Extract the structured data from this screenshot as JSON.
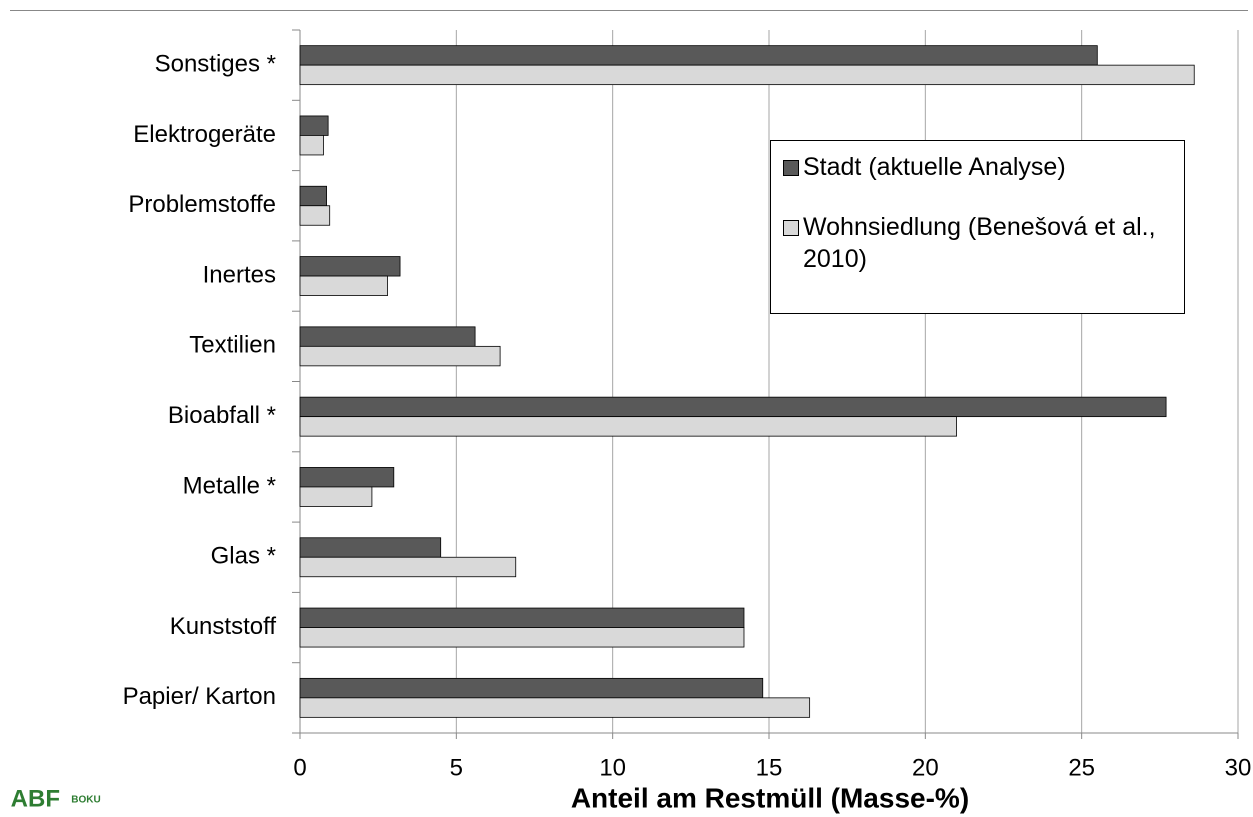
{
  "chart_data": {
    "type": "bar",
    "orientation": "horizontal",
    "x_label": "Anteil am Restmüll (Masse-%)",
    "categories": [
      "Sonstiges *",
      "Elektrogeräte",
      "Problemstoffe",
      "Inertes",
      "Textilien",
      "Bioabfall *",
      "Metalle *",
      "Glas *",
      "Kunststoff",
      "Papier/ Karton"
    ],
    "series": [
      {
        "name": "Stadt (aktuelle Analyse)",
        "color": "#595959",
        "values": [
          25.5,
          0.9,
          0.85,
          3.2,
          5.6,
          27.7,
          3.0,
          4.5,
          14.2,
          14.8
        ]
      },
      {
        "name": "Wohnsiedlung (Benešová et al., 2010)",
        "color": "#d9d9d9",
        "values": [
          28.6,
          0.75,
          0.95,
          2.8,
          6.4,
          21.0,
          2.3,
          6.9,
          14.2,
          16.3
        ]
      }
    ],
    "xlim": [
      0,
      30
    ],
    "xticks": [
      0,
      5,
      10,
      15,
      20,
      25,
      30
    ],
    "grid": true,
    "logo": [
      "ABF",
      "BOKU"
    ]
  }
}
